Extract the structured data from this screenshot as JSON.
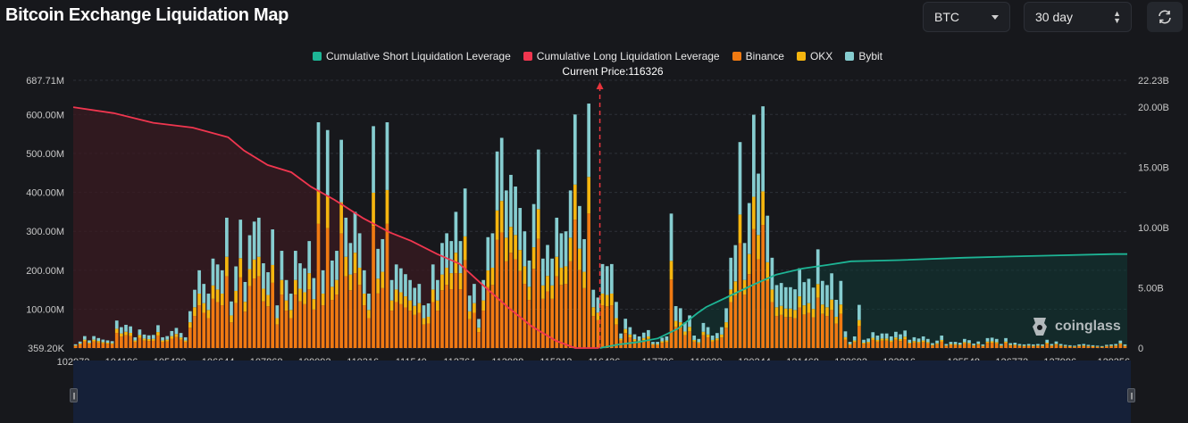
{
  "header": {
    "title": "Bitcoin Exchange Liquidation Map",
    "asset_select": "BTC",
    "range_select": "30 day"
  },
  "icons": {
    "refresh": "refresh-icon",
    "asset_caret": "chevron-down-icon",
    "range_caret": "up-down-icon",
    "brand": "coinglass-logo"
  },
  "watermark": {
    "text": "coinglass"
  },
  "colors": {
    "short": "#1db595",
    "long": "#f0364f",
    "binance": "#f07a12",
    "okx": "#f5b50f",
    "bybit": "#86cdd0",
    "bg": "#17181c",
    "navigator": "#152038"
  },
  "chart_data": {
    "type": "bar",
    "title": "Bitcoin Exchange Liquidation Map",
    "current_price_label": "Current Price:116326",
    "current_price": 116326,
    "legend": [
      "Cumulative Short Liquidation Leverage",
      "Cumulative Long Liquidation Leverage",
      "Binance",
      "OKX",
      "Bybit"
    ],
    "x_ticks": [
      "102972",
      "104196",
      "105420",
      "106644",
      "107868",
      "109092",
      "110316",
      "111540",
      "112764",
      "113988",
      "115212",
      "116436",
      "117796",
      "119020",
      "120244",
      "121468",
      "122692",
      "123916",
      "125548",
      "126772",
      "127996",
      "129356"
    ],
    "y_left_ticks": [
      "359.20K",
      "100.00M",
      "200.00M",
      "300.00M",
      "400.00M",
      "500.00M",
      "600.00M",
      "687.71M"
    ],
    "y_right_ticks": [
      "0",
      "5.00B",
      "10.00B",
      "15.00B",
      "20.00B",
      "22.23B"
    ],
    "y_left_range": [
      0.3592,
      687.71
    ],
    "y_right_range": [
      0,
      22.23
    ],
    "x_range": [
      102972,
      129700
    ],
    "bar_totals_M": [
      10,
      17,
      31,
      20,
      31,
      26,
      22,
      20,
      18,
      71,
      54,
      60,
      56,
      28,
      48,
      35,
      33,
      34,
      59,
      28,
      31,
      44,
      52,
      39,
      28,
      95,
      150,
      200,
      165,
      140,
      230,
      215,
      200,
      335,
      120,
      210,
      330,
      170,
      290,
      325,
      335,
      218,
      195,
      305,
      110,
      250,
      175,
      140,
      250,
      218,
      205,
      275,
      180,
      580,
      200,
      560,
      225,
      250,
      535,
      335,
      270,
      350,
      295,
      200,
      140,
      570,
      255,
      280,
      580,
      175,
      215,
      205,
      190,
      175,
      155,
      165,
      110,
      115,
      215,
      175,
      270,
      295,
      275,
      350,
      275,
      410,
      135,
      165,
      75,
      175,
      285,
      295,
      505,
      540,
      405,
      445,
      415,
      360,
      300,
      225,
      370,
      510,
      230,
      265,
      230,
      335,
      295,
      300,
      405,
      600,
      365,
      280,
      628,
      150,
      130,
      200,
      195,
      200,
      110,
      35,
      70,
      50,
      33,
      28,
      37,
      43,
      15,
      15,
      25,
      28,
      320,
      100,
      95,
      61,
      78,
      30,
      22,
      60,
      50,
      30,
      36,
      50,
      95,
      215,
      245,
      490,
      250,
      345,
      555,
      415,
      575,
      315,
      215,
      150,
      155,
      145,
      145,
      140,
      190,
      157,
      165,
      144,
      235,
      160,
      150,
      178,
      115,
      160,
      40,
      15,
      28,
      103,
      20,
      23,
      38,
      30,
      35,
      35,
      28,
      39,
      33,
      42,
      20,
      26,
      23,
      28,
      22,
      12,
      18,
      30,
      10,
      15,
      15,
      13,
      22,
      19,
      11,
      16,
      9,
      24,
      25,
      22,
      10,
      24,
      12,
      13,
      10,
      9,
      10,
      9,
      10,
      9,
      20,
      10,
      16,
      10,
      8,
      7,
      6,
      9,
      10,
      8,
      7,
      6,
      5,
      8,
      9,
      10,
      18,
      9
    ],
    "long_cumulative_B": [
      [
        102972,
        20.0
      ],
      [
        104000,
        19.5
      ],
      [
        105000,
        18.7
      ],
      [
        106000,
        18.3
      ],
      [
        106900,
        17.5
      ],
      [
        107300,
        16.4
      ],
      [
        107900,
        15.2
      ],
      [
        108500,
        14.6
      ],
      [
        109000,
        13.4
      ],
      [
        109600,
        12.3
      ],
      [
        110316,
        10.8
      ],
      [
        111000,
        9.6
      ],
      [
        111540,
        8.9
      ],
      [
        112200,
        7.8
      ],
      [
        112764,
        7.0
      ],
      [
        113300,
        5.4
      ],
      [
        113988,
        3.4
      ],
      [
        114600,
        1.8
      ],
      [
        115212,
        0.6
      ],
      [
        115700,
        0.0
      ],
      [
        116300,
        0.0
      ]
    ],
    "short_cumulative_B": [
      [
        116326,
        0.0
      ],
      [
        116800,
        0.3
      ],
      [
        117300,
        0.5
      ],
      [
        117796,
        0.8
      ],
      [
        118300,
        1.6
      ],
      [
        118800,
        2.9
      ],
      [
        119020,
        3.4
      ],
      [
        119600,
        4.3
      ],
      [
        120244,
        5.3
      ],
      [
        120800,
        6.1
      ],
      [
        121468,
        6.6
      ],
      [
        122100,
        6.9
      ],
      [
        122692,
        7.2
      ],
      [
        123916,
        7.3
      ],
      [
        125548,
        7.5
      ],
      [
        126772,
        7.6
      ],
      [
        127996,
        7.7
      ],
      [
        129356,
        7.8
      ],
      [
        129700,
        7.8
      ]
    ]
  }
}
